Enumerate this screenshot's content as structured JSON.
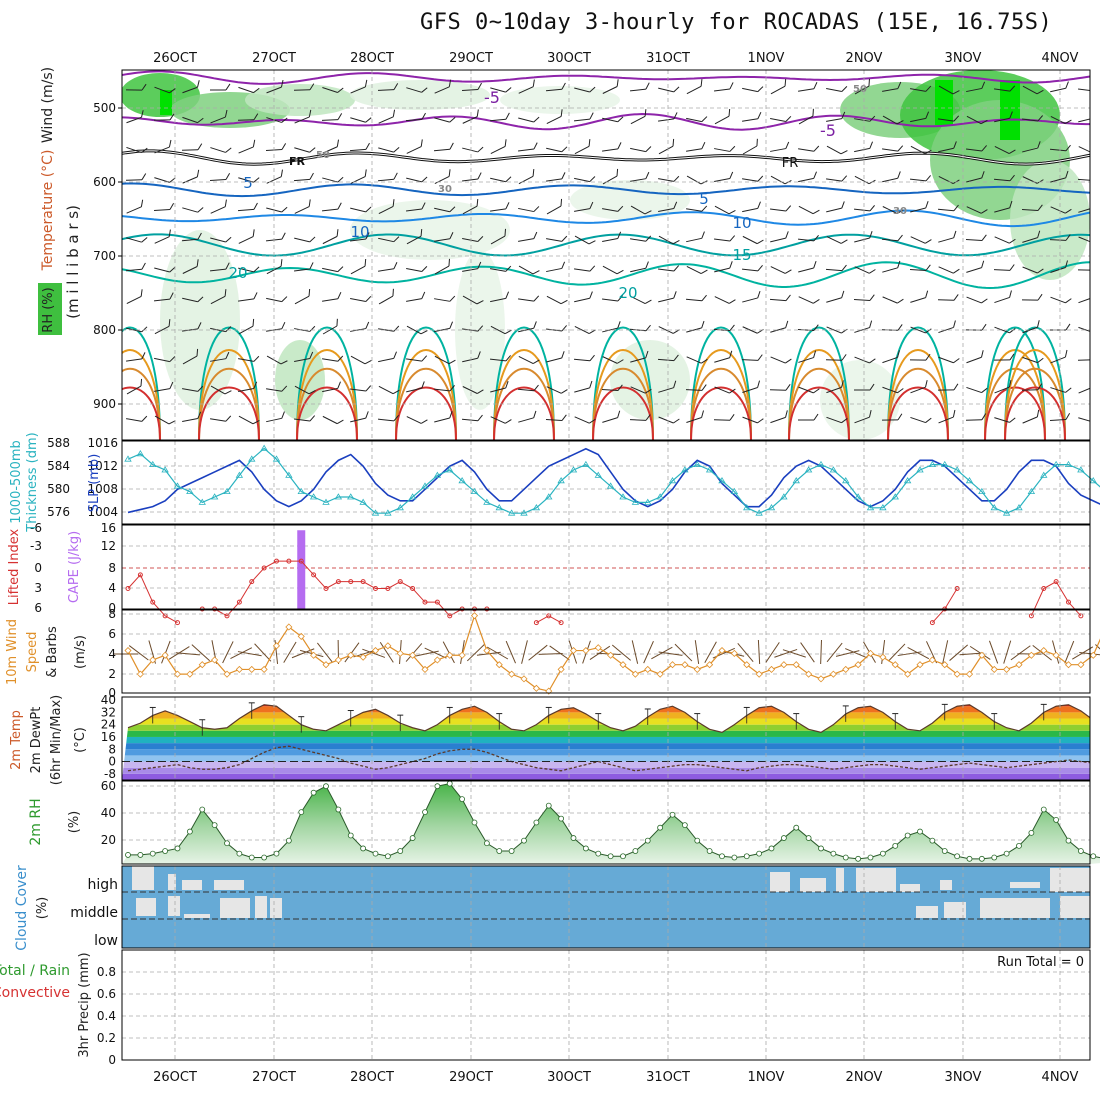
{
  "title": "GFS 0~10day 3-hourly for ROCADAS (15E, 16.75S)",
  "dates": [
    "26OCT",
    "27OCT",
    "28OCT",
    "29OCT",
    "30OCT",
    "31OCT",
    "1NOV",
    "2NOV",
    "3NOV",
    "4NOV"
  ],
  "colors": {
    "temp_cold": "#7b1fa2",
    "temp_mid": "#1565c0",
    "temp_teal": "#00a0a0",
    "temp_warm": "#e69a1e",
    "temp_hot": "#d32f2f",
    "rh_green": "#3fbf3f",
    "slp": "#1a3fbf",
    "thickness": "#2ab3c0",
    "cape": "#b56cf0",
    "li": "#d63232",
    "wind10": "#e0902a",
    "barb": "#6b4a2a",
    "rh2m": "#2e9a2e",
    "cloud": "#66aad6",
    "cloud_gap": "#e6e6e6"
  },
  "panels": {
    "upper": {
      "ylabels": [
        "Wind (m/s)",
        "Temperature (°C)",
        "(m i l l i b a r s)",
        "RH (%)"
      ],
      "yticks": [
        "500",
        "600",
        "700",
        "800",
        "900"
      ],
      "contour_labels": [
        "-5",
        "-5",
        "FR",
        "FR",
        "5",
        "5",
        "10",
        "10",
        "15",
        "20",
        "20",
        "50",
        "50",
        "30",
        "30"
      ]
    },
    "slp": {
      "ylabels": [
        "Thickness (dm)",
        "1000-500mb",
        "SLP (mb)"
      ],
      "left_ticks": [
        "588",
        "584",
        "580",
        "576"
      ],
      "right_ticks": [
        "1016",
        "1012",
        "1008",
        "1004"
      ]
    },
    "cape": {
      "ylabels": [
        "Lifted Index",
        "CAPE (J/kg)"
      ],
      "left_ticks": [
        "-6",
        "-3",
        "0",
        "3",
        "6"
      ],
      "right_ticks": [
        "16",
        "12",
        "8",
        "4",
        "0"
      ]
    },
    "wind10": {
      "ylabels": [
        "10m Wind",
        "Speed",
        "& Barbs",
        "(m/s)"
      ],
      "ticks": [
        "8",
        "6",
        "4",
        "2",
        "0"
      ]
    },
    "temp2m": {
      "ylabels": [
        "2m Temp",
        "2m DewPt",
        "(6hr Min/Max)",
        "(°C)"
      ],
      "ticks": [
        "40",
        "32",
        "24",
        "16",
        "8",
        "0",
        "-8"
      ]
    },
    "rh2m": {
      "ylabels": [
        "2m RH",
        "(%)"
      ],
      "ticks": [
        "60",
        "40",
        "20"
      ]
    },
    "cloud": {
      "ylabels": [
        "Cloud Cover",
        "(%)"
      ],
      "levels": [
        "high",
        "middle",
        "low"
      ]
    },
    "precip": {
      "ylabels": [
        "Total / Rain",
        "Convective",
        "3hr Precip (mm)"
      ],
      "ticks": [
        "0.8",
        "0.6",
        "0.4",
        "0.2",
        "0"
      ],
      "run_total": "Run Total = 0"
    }
  },
  "chart_data": {
    "type": "line",
    "times_step_hours": 3,
    "start": "25OCT 12Z",
    "slp_mb": [
      1004,
      1004.5,
      1005,
      1006,
      1008,
      1009,
      1010,
      1011,
      1012,
      1013,
      1011,
      1008,
      1006,
      1005,
      1006,
      1008,
      1011,
      1013,
      1014,
      1012,
      1009,
      1007,
      1006,
      1006,
      1008,
      1010,
      1012,
      1013,
      1011,
      1008,
      1006,
      1006,
      1008,
      1010,
      1012,
      1013,
      1014,
      1015,
      1014,
      1011,
      1008,
      1006,
      1005,
      1006,
      1008,
      1011,
      1013,
      1012,
      1009,
      1007,
      1005,
      1005,
      1007,
      1010,
      1012,
      1013,
      1012,
      1010,
      1008,
      1006,
      1005,
      1006,
      1008,
      1011,
      1013,
      1013,
      1012,
      1010,
      1008,
      1006,
      1006,
      1008,
      1011,
      1013,
      1013,
      1012,
      1009,
      1007,
      1006,
      1005,
      1006,
      1009,
      1012,
      1013,
      1013,
      1012,
      1010,
      1008,
      1006,
      1004,
      1006,
      1009,
      1012,
      1013,
      1012,
      1012,
      1012.5,
      1013,
      1013.5
    ],
    "thickness_dm": [
      585,
      586,
      584,
      583,
      580,
      579,
      577,
      578,
      579,
      582,
      585,
      587,
      585,
      582,
      579,
      578,
      577,
      578,
      578,
      577,
      575,
      575,
      576,
      578,
      580,
      582,
      583,
      581,
      579,
      577,
      576,
      575,
      575,
      576,
      578,
      581,
      583,
      584,
      582,
      580,
      578,
      577,
      577,
      578,
      581,
      583,
      584,
      583,
      581,
      579,
      576,
      575,
      576,
      578,
      581,
      583,
      584,
      583,
      581,
      578,
      576,
      576,
      578,
      581,
      583,
      584,
      584,
      583,
      581,
      579,
      576,
      575,
      576,
      579,
      582,
      584,
      584,
      583,
      581,
      579,
      576,
      575,
      577,
      580,
      583,
      585,
      586,
      585,
      583,
      580,
      578,
      577,
      577,
      578,
      579,
      580
    ],
    "lifted_index": [
      3,
      1,
      5,
      7,
      8,
      9,
      6,
      6,
      7,
      5,
      2,
      0,
      -1,
      -1,
      -1,
      1,
      3,
      2,
      2,
      2,
      3,
      3,
      2,
      3,
      5,
      5,
      7,
      6,
      6,
      6,
      9,
      9,
      9,
      8,
      7,
      8,
      9,
      9,
      9,
      9,
      9,
      9,
      9,
      9,
      9,
      9,
      9,
      9,
      9,
      9,
      9,
      9,
      9,
      9,
      9,
      9,
      9,
      9,
      9,
      9,
      9,
      9,
      9,
      9,
      9,
      8,
      6,
      3,
      9,
      9,
      9,
      9,
      9,
      7,
      3,
      2,
      5,
      7,
      9,
      9,
      9,
      9,
      9,
      7,
      3,
      0,
      3,
      5,
      9,
      9,
      9,
      9,
      7,
      3,
      2,
      3,
      5,
      6,
      9
    ],
    "cape_jkg": [
      0,
      0,
      0,
      0,
      0,
      0,
      0,
      0,
      0,
      0,
      0,
      0,
      0,
      0,
      15,
      0,
      0,
      0,
      0,
      0,
      0,
      0,
      0,
      0,
      0,
      0,
      0,
      0,
      0,
      0,
      0,
      0,
      0,
      0,
      0,
      0,
      0,
      0,
      0,
      0,
      0,
      0,
      0,
      0,
      0,
      0,
      0,
      0,
      0,
      0,
      0,
      0,
      0,
      0,
      0,
      0,
      0,
      0,
      0,
      0,
      0,
      0,
      0,
      0,
      0,
      0,
      0,
      0,
      0,
      0,
      0,
      0,
      0,
      0,
      0,
      0,
      0,
      0,
      0,
      0,
      0,
      0,
      0,
      0,
      0,
      0,
      0,
      0,
      0,
      0,
      0,
      0,
      0,
      0,
      0,
      0,
      0,
      0,
      0
    ],
    "wind10m_ms": [
      4.5,
      2,
      3.5,
      4,
      2,
      2,
      3,
      3.5,
      2,
      2.5,
      2.5,
      2.5,
      5,
      7,
      6,
      4,
      3,
      3.5,
      4,
      3.8,
      4.5,
      5,
      4.2,
      4,
      2.5,
      3.5,
      4,
      4,
      8.2,
      4.5,
      3,
      2,
      1.5,
      0.5,
      0.2,
      2.5,
      4.5,
      4.5,
      4.8,
      4,
      3,
      2,
      2.5,
      2,
      3,
      3,
      2.5,
      3,
      4.5,
      4.2,
      3,
      2,
      2.5,
      3,
      3,
      2,
      1.5,
      2,
      2.5,
      3,
      4.2,
      3.8,
      3,
      2,
      3,
      3.5,
      3,
      2,
      2,
      4,
      2.5,
      2.5,
      3,
      4,
      4.5,
      4,
      3,
      3,
      4,
      7,
      4,
      3.5,
      2,
      3.5,
      3.5,
      3,
      2.5,
      2.5,
      3,
      3.5,
      2,
      3,
      2,
      4,
      3,
      3,
      3,
      3,
      2.5
    ],
    "temp2m_c": [
      22,
      25,
      30,
      33,
      30,
      26,
      22,
      21,
      22,
      28,
      33,
      37,
      36,
      30,
      24,
      21,
      20,
      24,
      28,
      32,
      34,
      30,
      25,
      22,
      20,
      24,
      30,
      34,
      36,
      32,
      26,
      21,
      20,
      24,
      30,
      34,
      35,
      31,
      26,
      22,
      20,
      23,
      29,
      34,
      36,
      32,
      26,
      21,
      19,
      24,
      30,
      35,
      36,
      32,
      26,
      21,
      19,
      24,
      31,
      35,
      36,
      32,
      26,
      21,
      20,
      25,
      32,
      36,
      37,
      32,
      26,
      22,
      20,
      25,
      32,
      36,
      37,
      33,
      27,
      22,
      21,
      25,
      31,
      36,
      38,
      33,
      28,
      23,
      22,
      24,
      30,
      34,
      34,
      30,
      26,
      23,
      22,
      21,
      20
    ],
    "dewpt2m_c": [
      -6,
      -5,
      -4,
      -3,
      -2,
      -4,
      -5,
      -5,
      -4,
      -2,
      2,
      6,
      9,
      10,
      8,
      6,
      4,
      2,
      -1,
      -3,
      -5,
      -4,
      -2,
      0,
      2,
      5,
      7,
      8,
      8,
      6,
      3,
      0,
      -2,
      -4,
      -5,
      -6,
      -4,
      -2,
      0,
      -2,
      -4,
      -6,
      -5,
      -4,
      -3,
      -2,
      -2,
      -3,
      -4,
      -5,
      -6,
      -4,
      -3,
      -2,
      -2,
      -3,
      -4,
      -5,
      -4,
      -3,
      -2,
      -2,
      -3,
      -4,
      -5,
      -4,
      -3,
      -2,
      -1,
      -2,
      -3,
      -4,
      -3,
      -2,
      -1,
      0,
      1,
      0,
      -1,
      -2,
      -1,
      0,
      2,
      6,
      8,
      6,
      3,
      0,
      -2,
      -1,
      1,
      2,
      4,
      3,
      1,
      0,
      -1,
      -2,
      -3
    ],
    "rh2m_pct": [
      7,
      7,
      8,
      10,
      12,
      25,
      42,
      30,
      16,
      8,
      5,
      5,
      8,
      18,
      40,
      55,
      60,
      42,
      22,
      12,
      8,
      6,
      10,
      20,
      40,
      60,
      62,
      50,
      32,
      16,
      10,
      10,
      18,
      32,
      45,
      35,
      20,
      12,
      8,
      6,
      6,
      10,
      18,
      28,
      38,
      30,
      18,
      10,
      6,
      5,
      6,
      8,
      12,
      20,
      28,
      20,
      12,
      8,
      5,
      4,
      5,
      8,
      14,
      22,
      25,
      18,
      10,
      6,
      4,
      4,
      5,
      8,
      14,
      24,
      42,
      34,
      18,
      10,
      6,
      4,
      5,
      8,
      12,
      30,
      48,
      50,
      34,
      14,
      8,
      6,
      6,
      8,
      14,
      26,
      32,
      22,
      15
    ]
  }
}
